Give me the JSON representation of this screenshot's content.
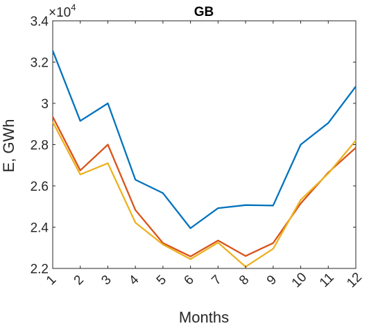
{
  "chart_data": {
    "type": "line",
    "title": "GB",
    "xlabel": "Months",
    "ylabel": "E, GWh",
    "y_exponent_label": {
      "base": "×10",
      "power": "4"
    },
    "x": [
      1,
      2,
      3,
      4,
      5,
      6,
      7,
      8,
      9,
      10,
      11,
      12
    ],
    "xticks": [
      "1",
      "2",
      "3",
      "4",
      "5",
      "6",
      "7",
      "8",
      "9",
      "10",
      "11",
      "12"
    ],
    "yticks": [
      "2.2",
      "2.4",
      "2.6",
      "2.8",
      "3",
      "3.2",
      "3.4"
    ],
    "ytick_values": [
      22000,
      24000,
      26000,
      28000,
      30000,
      32000,
      34000
    ],
    "xlim": [
      1,
      12
    ],
    "ylim": [
      22000,
      34000
    ],
    "grid": false,
    "series": [
      {
        "color": "#0072BD",
        "values": [
          32550,
          29150,
          30000,
          26300,
          25650,
          23950,
          24920,
          25070,
          25050,
          28000,
          29050,
          30820
        ]
      },
      {
        "color": "#D95319",
        "values": [
          29350,
          26750,
          28000,
          24830,
          23230,
          22580,
          23350,
          22600,
          23230,
          25150,
          26650,
          27850
        ]
      },
      {
        "color": "#EDB120",
        "values": [
          29100,
          26550,
          27100,
          24220,
          23160,
          22450,
          23250,
          22080,
          22950,
          25320,
          26600,
          28200
        ]
      }
    ]
  }
}
